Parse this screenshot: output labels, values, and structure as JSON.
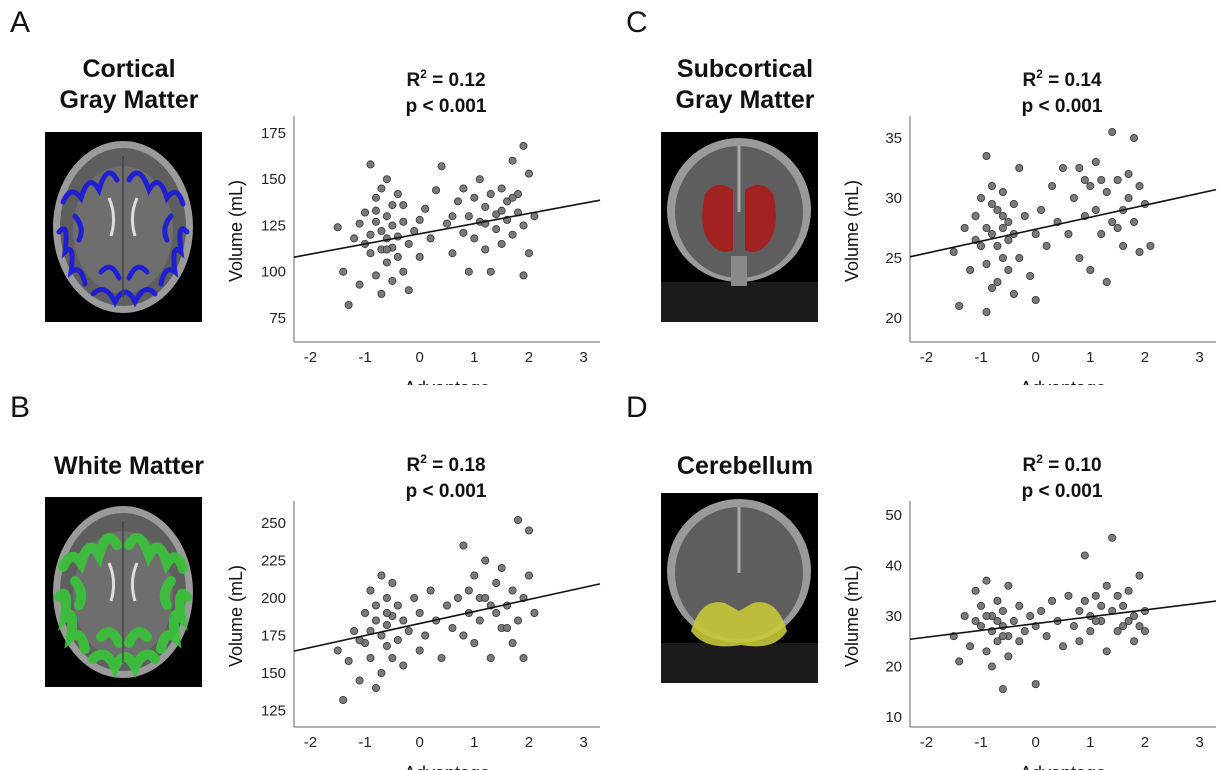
{
  "chart_data": [
    {
      "type": "scatter",
      "panel_letter": "A",
      "region": [
        "Cortical",
        "Gray Matter"
      ],
      "r2_label": "R",
      "r2_sup": "2",
      "r2_value": " = 0.12",
      "p_label": "p < 0.001",
      "xlabel": "Advantage",
      "ylabel": "Volume (mL)",
      "xlim": [
        -2.3,
        3.3
      ],
      "ylim": [
        62,
        182
      ],
      "xticks": [
        -2,
        -1,
        0,
        1,
        2,
        3
      ],
      "yticks": [
        75,
        100,
        125,
        150,
        175
      ],
      "fit": {
        "slope": 5.5,
        "intercept": 120.5
      },
      "overlay_color": "#1a1adb",
      "brain_view": "axial",
      "points": [
        [
          -1.5,
          124
        ],
        [
          -1.4,
          100
        ],
        [
          -1.3,
          82
        ],
        [
          -1.2,
          118
        ],
        [
          -1.1,
          93
        ],
        [
          -1.0,
          115
        ],
        [
          -1.0,
          132
        ],
        [
          -0.9,
          120
        ],
        [
          -0.9,
          158
        ],
        [
          -0.9,
          110
        ],
        [
          -0.8,
          127
        ],
        [
          -0.8,
          98
        ],
        [
          -0.8,
          140
        ],
        [
          -0.7,
          112
        ],
        [
          -0.7,
          122
        ],
        [
          -0.7,
          88
        ],
        [
          -0.7,
          145
        ],
        [
          -0.6,
          118
        ],
        [
          -0.6,
          130
        ],
        [
          -0.6,
          105
        ],
        [
          -0.6,
          150
        ],
        [
          -0.5,
          113
        ],
        [
          -0.5,
          125
        ],
        [
          -0.5,
          95
        ],
        [
          -0.5,
          136
        ],
        [
          -0.4,
          108
        ],
        [
          -0.4,
          119
        ],
        [
          -0.4,
          142
        ],
        [
          -0.3,
          100
        ],
        [
          -0.3,
          127
        ],
        [
          -0.2,
          115
        ],
        [
          -0.2,
          90
        ],
        [
          -0.1,
          122
        ],
        [
          0.0,
          108
        ],
        [
          0.0,
          128
        ],
        [
          0.1,
          134
        ],
        [
          0.2,
          118
        ],
        [
          0.3,
          144
        ],
        [
          0.4,
          157
        ],
        [
          0.5,
          126
        ],
        [
          0.6,
          110
        ],
        [
          0.7,
          138
        ],
        [
          0.8,
          121
        ],
        [
          0.8,
          145
        ],
        [
          0.9,
          130
        ],
        [
          0.9,
          100
        ],
        [
          1.0,
          140
        ],
        [
          1.0,
          118
        ],
        [
          1.1,
          150
        ],
        [
          1.1,
          127
        ],
        [
          1.2,
          135
        ],
        [
          1.2,
          112
        ],
        [
          1.3,
          142
        ],
        [
          1.3,
          100
        ],
        [
          1.4,
          131
        ],
        [
          1.4,
          123
        ],
        [
          1.5,
          145
        ],
        [
          1.5,
          115
        ],
        [
          1.6,
          138
        ],
        [
          1.6,
          128
        ],
        [
          1.7,
          160
        ],
        [
          1.7,
          120
        ],
        [
          1.8,
          132
        ],
        [
          1.8,
          142
        ],
        [
          1.9,
          168
        ],
        [
          1.9,
          125
        ],
        [
          2.0,
          153
        ],
        [
          2.0,
          110
        ],
        [
          2.1,
          130
        ],
        [
          1.9,
          98
        ],
        [
          1.7,
          140
        ],
        [
          1.5,
          133
        ],
        [
          -0.8,
          133
        ],
        [
          -0.6,
          112
        ],
        [
          -1.1,
          126
        ],
        [
          -0.3,
          136
        ],
        [
          1.2,
          126
        ],
        [
          0.6,
          130
        ]
      ]
    },
    {
      "type": "scatter",
      "panel_letter": "C",
      "region": [
        "Subcortical",
        "Gray Matter"
      ],
      "r2_label": "R",
      "r2_sup": "2",
      "r2_value": " = 0.14",
      "p_label": "p < 0.001",
      "xlabel": "Advantage",
      "ylabel": "Volume (mL)",
      "xlim": [
        -2.3,
        3.3
      ],
      "ylim": [
        18,
        36.5
      ],
      "xticks": [
        -2,
        -1,
        0,
        1,
        2,
        3
      ],
      "yticks": [
        20,
        25,
        30,
        35
      ],
      "fit": {
        "slope": 1.0,
        "intercept": 27.4
      },
      "overlay_color": "#a51e1e",
      "brain_view": "coronal",
      "points": [
        [
          -1.5,
          25.5
        ],
        [
          -1.4,
          21
        ],
        [
          -1.3,
          27.5
        ],
        [
          -1.2,
          24
        ],
        [
          -1.1,
          28.5
        ],
        [
          -1.0,
          26
        ],
        [
          -1.0,
          30
        ],
        [
          -0.9,
          24.5
        ],
        [
          -0.9,
          33.5
        ],
        [
          -0.9,
          20.5
        ],
        [
          -0.8,
          27
        ],
        [
          -0.8,
          22.5
        ],
        [
          -0.8,
          31
        ],
        [
          -0.7,
          26
        ],
        [
          -0.7,
          29
        ],
        [
          -0.7,
          23
        ],
        [
          -0.6,
          27.5
        ],
        [
          -0.6,
          25
        ],
        [
          -0.6,
          30.5
        ],
        [
          -0.5,
          26.5
        ],
        [
          -0.5,
          24
        ],
        [
          -0.5,
          28
        ],
        [
          -0.4,
          22
        ],
        [
          -0.4,
          27
        ],
        [
          -0.3,
          32.5
        ],
        [
          -0.3,
          25
        ],
        [
          -0.2,
          28.5
        ],
        [
          -0.1,
          23.5
        ],
        [
          0.0,
          27
        ],
        [
          0.0,
          21.5
        ],
        [
          0.1,
          29
        ],
        [
          0.2,
          26
        ],
        [
          0.3,
          31
        ],
        [
          0.4,
          28
        ],
        [
          0.5,
          32.5
        ],
        [
          0.6,
          27
        ],
        [
          0.7,
          30
        ],
        [
          0.8,
          25
        ],
        [
          0.8,
          32.5
        ],
        [
          0.9,
          28.5
        ],
        [
          1.0,
          31
        ],
        [
          1.0,
          24
        ],
        [
          1.1,
          29
        ],
        [
          1.1,
          33
        ],
        [
          1.2,
          27
        ],
        [
          1.3,
          30.5
        ],
        [
          1.3,
          23
        ],
        [
          1.4,
          35.5
        ],
        [
          1.4,
          28
        ],
        [
          1.5,
          31.5
        ],
        [
          1.6,
          29
        ],
        [
          1.6,
          26
        ],
        [
          1.7,
          32
        ],
        [
          1.7,
          30
        ],
        [
          1.8,
          35
        ],
        [
          1.8,
          28
        ],
        [
          1.9,
          31
        ],
        [
          1.9,
          25.5
        ],
        [
          2.0,
          29.5
        ],
        [
          2.1,
          26
        ],
        [
          1.5,
          27.5
        ],
        [
          1.2,
          31.5
        ],
        [
          -0.8,
          29.5
        ],
        [
          -1.1,
          26.5
        ],
        [
          -0.6,
          28.5
        ],
        [
          0.9,
          31.5
        ],
        [
          -0.4,
          29.5
        ],
        [
          -0.9,
          27.5
        ]
      ]
    },
    {
      "type": "scatter",
      "panel_letter": "B",
      "region": [
        "White Matter"
      ],
      "r2_label": "R",
      "r2_sup": "2",
      "r2_value": " = 0.18",
      "p_label": "p < 0.001",
      "xlabel": "Advantage",
      "ylabel": "Volume (mL)",
      "xlim": [
        -2.3,
        3.3
      ],
      "ylim": [
        114,
        262
      ],
      "xticks": [
        -2,
        -1,
        0,
        1,
        2,
        3
      ],
      "yticks": [
        125,
        150,
        175,
        200,
        225,
        250
      ],
      "fit": {
        "slope": 8.0,
        "intercept": 183.0
      },
      "overlay_color": "#3ac23a",
      "brain_view": "axial",
      "points": [
        [
          -1.5,
          165
        ],
        [
          -1.4,
          132
        ],
        [
          -1.3,
          158
        ],
        [
          -1.2,
          178
        ],
        [
          -1.1,
          145
        ],
        [
          -1.0,
          190
        ],
        [
          -1.0,
          170
        ],
        [
          -0.9,
          205
        ],
        [
          -0.9,
          160
        ],
        [
          -0.8,
          185
        ],
        [
          -0.8,
          140
        ],
        [
          -0.8,
          195
        ],
        [
          -0.7,
          175
        ],
        [
          -0.7,
          215
        ],
        [
          -0.7,
          150
        ],
        [
          -0.6,
          182
        ],
        [
          -0.6,
          168
        ],
        [
          -0.6,
          200
        ],
        [
          -0.5,
          188
        ],
        [
          -0.5,
          160
        ],
        [
          -0.5,
          210
        ],
        [
          -0.4,
          172
        ],
        [
          -0.4,
          195
        ],
        [
          -0.3,
          155
        ],
        [
          -0.3,
          185
        ],
        [
          -0.2,
          178
        ],
        [
          -0.1,
          200
        ],
        [
          0.0,
          165
        ],
        [
          0.0,
          190
        ],
        [
          0.1,
          175
        ],
        [
          0.2,
          205
        ],
        [
          0.3,
          185
        ],
        [
          0.4,
          160
        ],
        [
          0.5,
          195
        ],
        [
          0.6,
          180
        ],
        [
          0.7,
          200
        ],
        [
          0.8,
          235
        ],
        [
          0.8,
          175
        ],
        [
          0.9,
          190
        ],
        [
          1.0,
          215
        ],
        [
          1.0,
          170
        ],
        [
          1.1,
          200
        ],
        [
          1.1,
          185
        ],
        [
          1.2,
          225
        ],
        [
          1.3,
          195
        ],
        [
          1.3,
          160
        ],
        [
          1.4,
          210
        ],
        [
          1.5,
          180
        ],
        [
          1.5,
          220
        ],
        [
          1.6,
          195
        ],
        [
          1.7,
          205
        ],
        [
          1.7,
          170
        ],
        [
          1.8,
          252
        ],
        [
          1.8,
          185
        ],
        [
          1.9,
          200
        ],
        [
          1.9,
          160
        ],
        [
          2.0,
          245
        ],
        [
          2.0,
          215
        ],
        [
          2.1,
          190
        ],
        [
          1.6,
          180
        ],
        [
          1.2,
          200
        ],
        [
          -0.9,
          178
        ],
        [
          -0.6,
          190
        ],
        [
          0.9,
          205
        ],
        [
          -1.1,
          172
        ],
        [
          1.4,
          190
        ]
      ]
    },
    {
      "type": "scatter",
      "panel_letter": "D",
      "region": [
        "Cerebellum"
      ],
      "r2_label": "R",
      "r2_sup": "2",
      "r2_value": " = 0.10",
      "p_label": "p < 0.001",
      "xlabel": "Advantage",
      "ylabel": "Volume (mL)",
      "xlim": [
        -2.3,
        3.3
      ],
      "ylim": [
        8,
        52
      ],
      "xticks": [
        -2,
        -1,
        0,
        1,
        2,
        3
      ],
      "yticks": [
        10,
        20,
        30,
        40,
        50
      ],
      "fit": {
        "slope": 1.35,
        "intercept": 28.5
      },
      "overlay_color": "#c8c83a",
      "brain_view": "coronal",
      "points": [
        [
          -1.5,
          26
        ],
        [
          -1.4,
          21
        ],
        [
          -1.3,
          30
        ],
        [
          -1.2,
          24
        ],
        [
          -1.1,
          35
        ],
        [
          -1.0,
          28
        ],
        [
          -1.0,
          32
        ],
        [
          -0.9,
          23
        ],
        [
          -0.9,
          37
        ],
        [
          -0.8,
          27
        ],
        [
          -0.8,
          30
        ],
        [
          -0.8,
          20
        ],
        [
          -0.7,
          29
        ],
        [
          -0.7,
          25
        ],
        [
          -0.7,
          33
        ],
        [
          -0.6,
          15.5
        ],
        [
          -0.6,
          28
        ],
        [
          -0.6,
          31
        ],
        [
          -0.5,
          26
        ],
        [
          -0.5,
          36
        ],
        [
          -0.5,
          22
        ],
        [
          -0.4,
          29
        ],
        [
          -0.3,
          25
        ],
        [
          -0.3,
          32
        ],
        [
          -0.2,
          27
        ],
        [
          -0.1,
          30
        ],
        [
          0.0,
          16.5
        ],
        [
          0.0,
          28
        ],
        [
          0.1,
          31
        ],
        [
          0.2,
          26
        ],
        [
          0.3,
          33
        ],
        [
          0.4,
          29
        ],
        [
          0.5,
          24
        ],
        [
          0.6,
          34
        ],
        [
          0.7,
          28
        ],
        [
          0.8,
          31
        ],
        [
          0.8,
          25
        ],
        [
          0.9,
          42
        ],
        [
          1.0,
          30
        ],
        [
          1.0,
          27
        ],
        [
          1.1,
          34
        ],
        [
          1.2,
          29
        ],
        [
          1.3,
          36
        ],
        [
          1.3,
          23
        ],
        [
          1.4,
          45.5
        ],
        [
          1.4,
          31
        ],
        [
          1.5,
          34
        ],
        [
          1.5,
          27
        ],
        [
          1.6,
          32
        ],
        [
          1.7,
          29
        ],
        [
          1.7,
          35
        ],
        [
          1.8,
          30
        ],
        [
          1.8,
          25
        ],
        [
          1.9,
          38
        ],
        [
          1.9,
          28
        ],
        [
          2.0,
          31
        ],
        [
          2.0,
          27
        ],
        [
          1.6,
          28
        ],
        [
          1.2,
          32
        ],
        [
          -0.9,
          30
        ],
        [
          -0.6,
          26
        ],
        [
          0.9,
          33
        ],
        [
          -1.1,
          29
        ],
        [
          1.1,
          29
        ]
      ]
    }
  ]
}
